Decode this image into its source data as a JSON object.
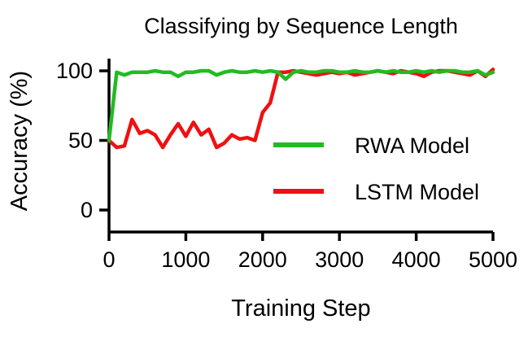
{
  "chart_data": {
    "type": "line",
    "title": "Classifying by Sequence Length",
    "xlabel": "Training  Step",
    "ylabel": "Accuracy (%)",
    "xlim": [
      0,
      5000
    ],
    "ylim": [
      0,
      100
    ],
    "xticks": [
      0,
      1000,
      2000,
      3000,
      4000,
      5000
    ],
    "yticks": [
      0,
      50,
      100
    ],
    "xtick_labels": [
      "0",
      "1000",
      "2000",
      "3000",
      "4000",
      "5000"
    ],
    "ytick_labels": [
      "0",
      "50",
      "100"
    ],
    "grid": false,
    "legend_position": "center-right",
    "series": [
      {
        "name": "RWA Model",
        "color": "#22bb22",
        "x": [
          0,
          100,
          200,
          300,
          400,
          500,
          600,
          700,
          800,
          900,
          1000,
          1100,
          1200,
          1300,
          1400,
          1500,
          1600,
          1700,
          1800,
          1900,
          2000,
          2100,
          2200,
          2300,
          2400,
          2500,
          2600,
          2700,
          2800,
          2900,
          3000,
          3100,
          3200,
          3300,
          3400,
          3500,
          3600,
          3700,
          3800,
          3900,
          4000,
          4100,
          4200,
          4300,
          4400,
          4500,
          4600,
          4700,
          4800,
          4900,
          5000
        ],
        "y": [
          50,
          99,
          97,
          99,
          99,
          99,
          100,
          99,
          99,
          96,
          99,
          99,
          100,
          100,
          97,
          99,
          100,
          99,
          99,
          100,
          99,
          100,
          99,
          94,
          99,
          100,
          99,
          99,
          100,
          100,
          99,
          99,
          100,
          99,
          99,
          100,
          99,
          100,
          99,
          99,
          100,
          99,
          100,
          99,
          100,
          100,
          99,
          99,
          100,
          97,
          99
        ]
      },
      {
        "name": "LSTM Model",
        "color": "#ee1111",
        "x": [
          0,
          100,
          200,
          300,
          400,
          500,
          600,
          700,
          800,
          900,
          1000,
          1100,
          1200,
          1300,
          1400,
          1500,
          1600,
          1700,
          1800,
          1900,
          2000,
          2100,
          2200,
          2300,
          2400,
          2500,
          2600,
          2700,
          2800,
          2900,
          3000,
          3100,
          3200,
          3300,
          3400,
          3500,
          3600,
          3700,
          3800,
          3900,
          4000,
          4100,
          4200,
          4300,
          4400,
          4500,
          4600,
          4700,
          4800,
          4900,
          5000
        ],
        "y": [
          50,
          45,
          46,
          65,
          55,
          57,
          54,
          45,
          54,
          62,
          53,
          63,
          54,
          58,
          45,
          48,
          54,
          51,
          52,
          50,
          70,
          77,
          99,
          99,
          100,
          99,
          98,
          97,
          98,
          99,
          98,
          99,
          97,
          98,
          99,
          100,
          99,
          98,
          100,
          99,
          98,
          96,
          99,
          100,
          100,
          99,
          98,
          97,
          100,
          96,
          101
        ]
      }
    ]
  }
}
